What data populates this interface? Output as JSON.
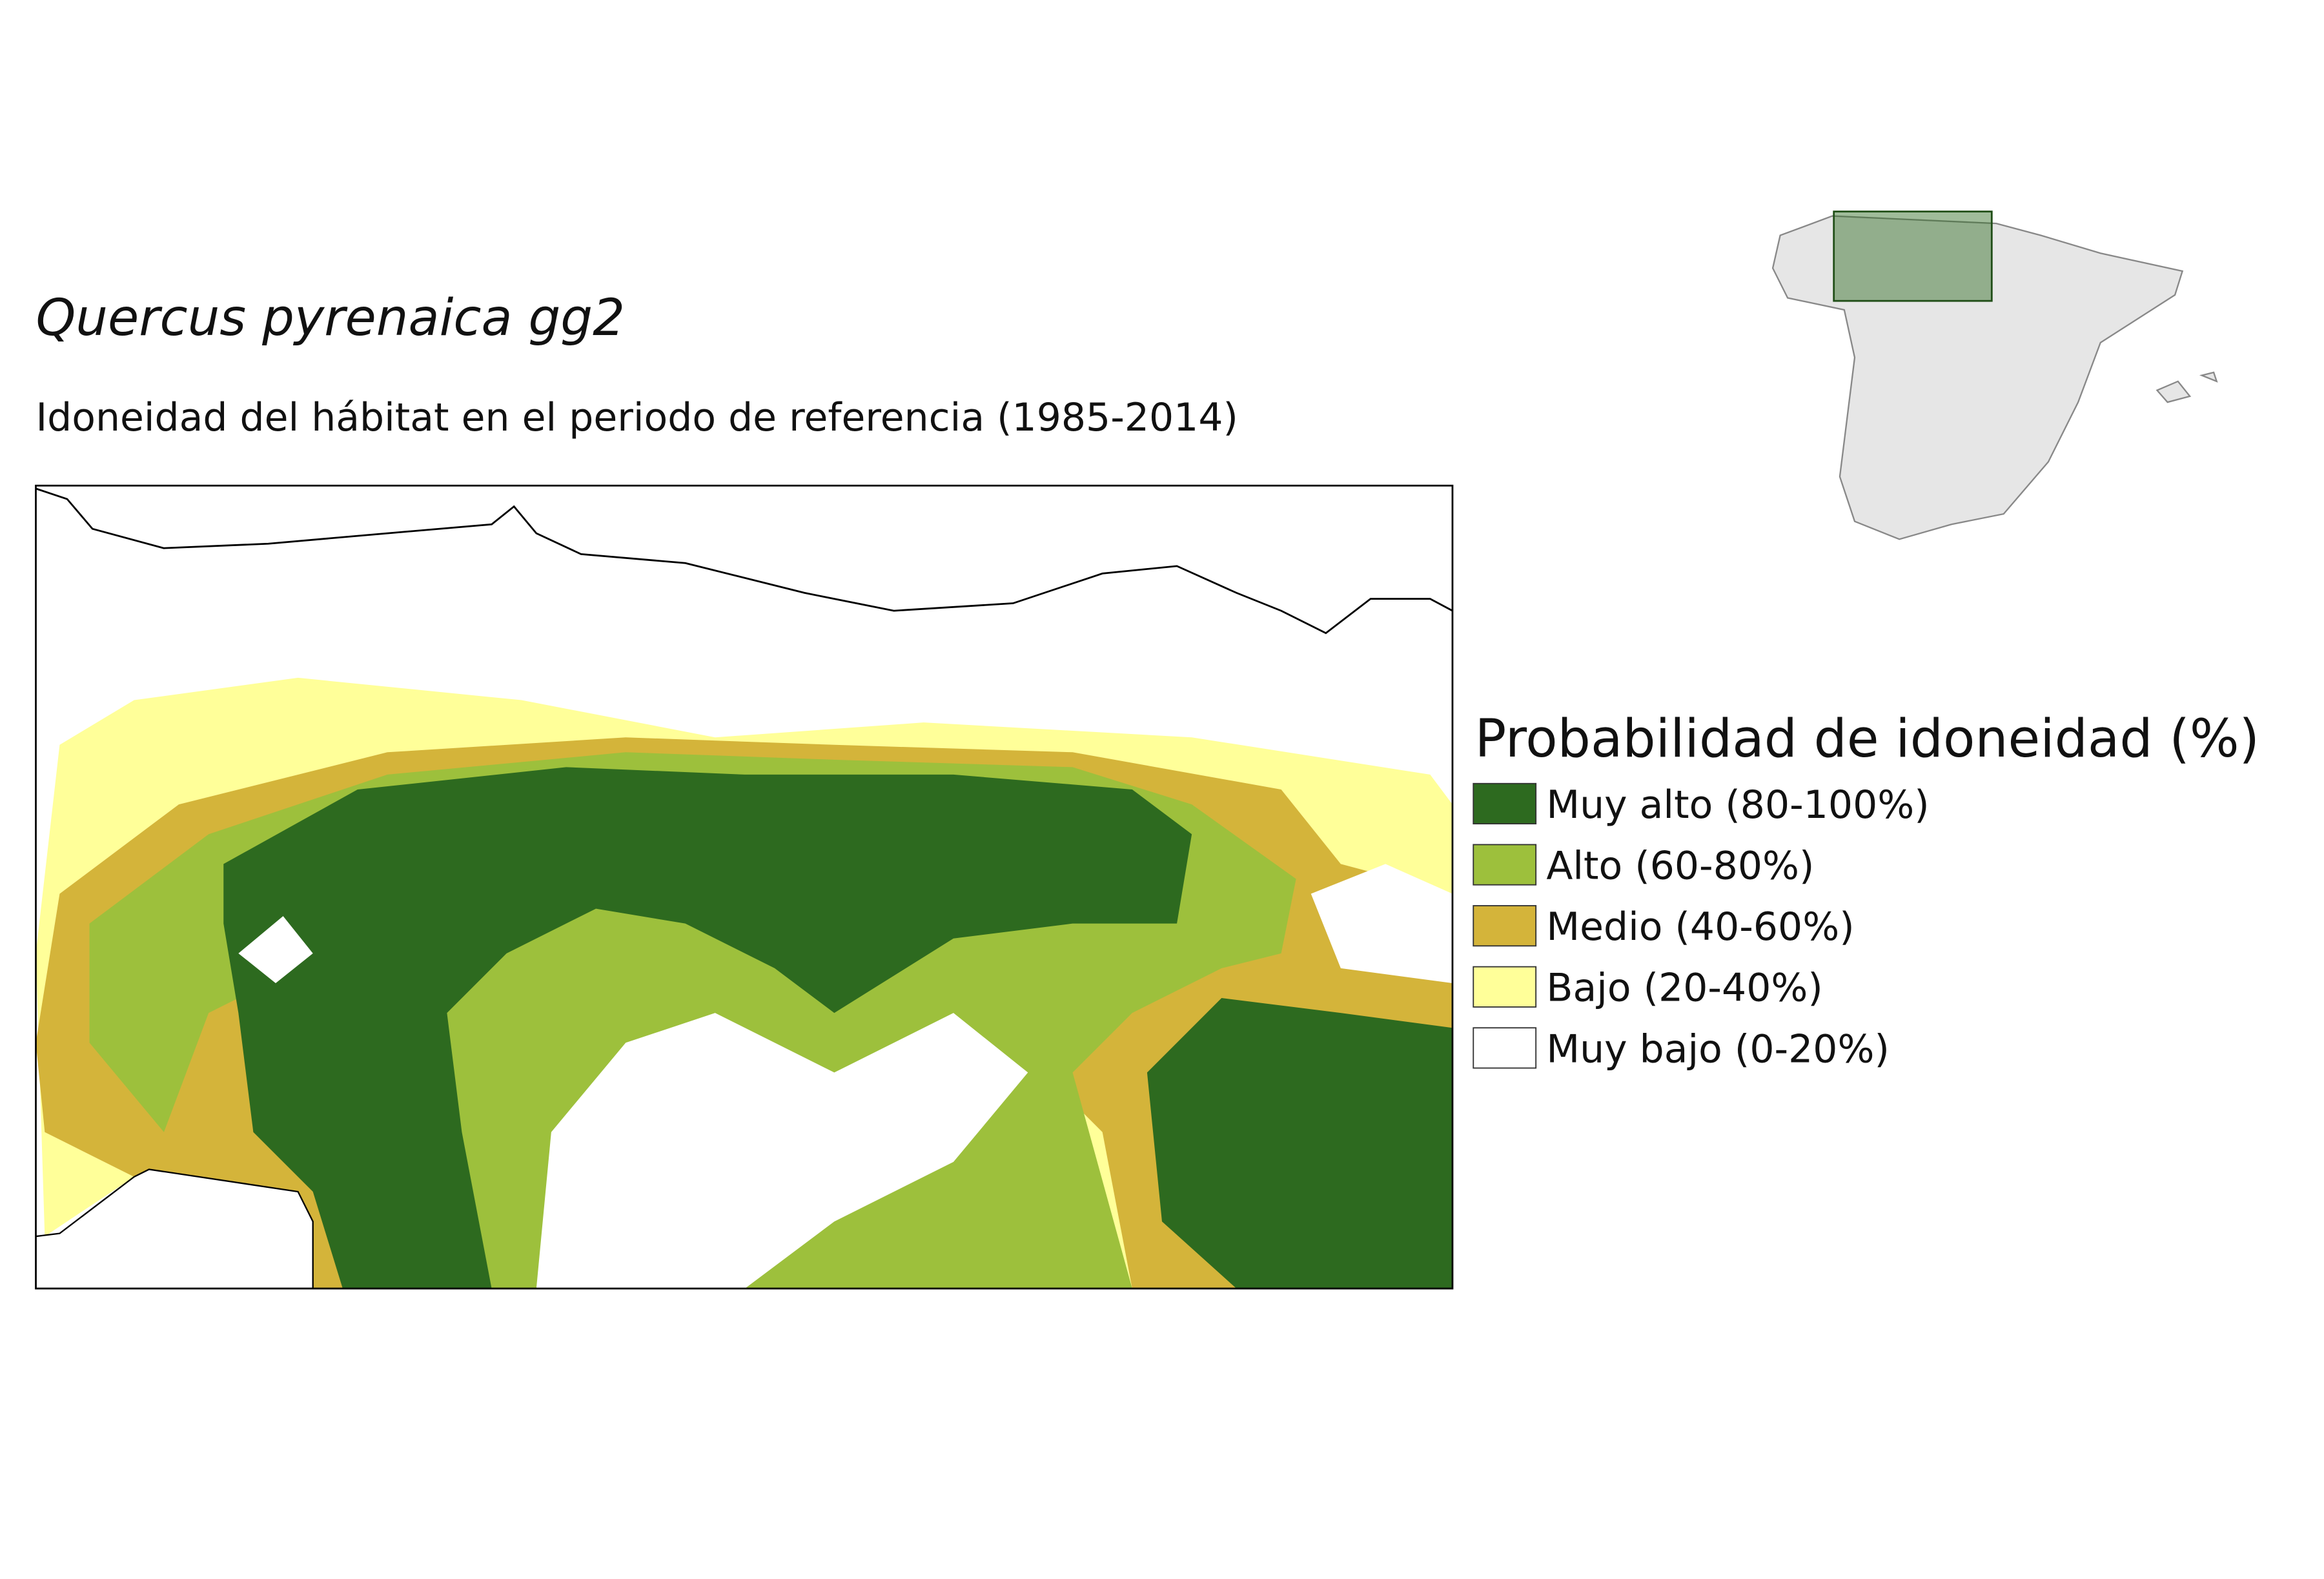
{
  "title": "Quercus pyrenaica gg2",
  "subtitle": "Idoneidad del hábitat en el periodo de referencia (1985-2014)",
  "legend": {
    "title": "Probabilidad de idoneidad (%)",
    "items": [
      {
        "label": "Muy alto (80-100%)",
        "color": "#2d6a1f"
      },
      {
        "label": "Alto (60-80%)",
        "color": "#9dc03c"
      },
      {
        "label": "Medio (40-60%)",
        "color": "#d4b43a"
      },
      {
        "label": "Bajo (20-40%)",
        "color": "#ffff99"
      },
      {
        "label": "Muy bajo (0-20%)",
        "color": "#ffffff"
      }
    ]
  }
}
